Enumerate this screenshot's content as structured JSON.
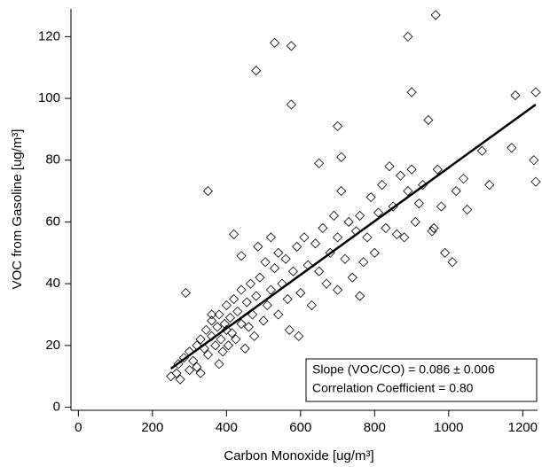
{
  "chart_data": {
    "type": "scatter",
    "xlabel": "Carbon Monoxide [ug/m³]",
    "ylabel": "VOC from Gasoline [ug/m³]",
    "annotations": [
      "Slope (VOC/CO) = 0.086 ± 0.006",
      "Correlation Coefficient = 0.80"
    ],
    "xlim": [
      -20,
      1240
    ],
    "ylim": [
      -1,
      129
    ],
    "xticks": [
      0,
      200,
      400,
      600,
      800,
      1000,
      1200
    ],
    "yticks": [
      0,
      20,
      40,
      60,
      80,
      100,
      120
    ],
    "color": "#000000",
    "x": [
      965,
      890,
      530,
      575,
      480,
      575,
      900,
      1180,
      1235,
      945,
      700,
      710,
      1230,
      1235,
      350,
      290,
      1010,
      990,
      1110,
      1170,
      955,
      960,
      760,
      650,
      250,
      265,
      275,
      270,
      285,
      300,
      300,
      310,
      320,
      320,
      330,
      340,
      345,
      350,
      360,
      360,
      370,
      375,
      380,
      385,
      390,
      395,
      400,
      400,
      405,
      410,
      415,
      420,
      425,
      430,
      440,
      440,
      450,
      455,
      460,
      465,
      470,
      475,
      480,
      485,
      490,
      500,
      505,
      510,
      520,
      520,
      530,
      540,
      540,
      550,
      560,
      565,
      570,
      580,
      590,
      595,
      600,
      610,
      620,
      630,
      640,
      650,
      660,
      670,
      680,
      690,
      700,
      700,
      710,
      720,
      730,
      740,
      750,
      760,
      770,
      780,
      790,
      800,
      810,
      820,
      830,
      840,
      850,
      860,
      870,
      880,
      890,
      900,
      910,
      920,
      930,
      970,
      980,
      1020,
      1040,
      1050,
      1090,
      420,
      440,
      360,
      380,
      330
    ],
    "values": [
      127,
      120,
      118,
      117,
      109,
      98,
      102,
      101,
      102,
      93,
      91,
      81,
      80,
      73,
      70,
      37,
      47,
      50,
      72,
      84,
      57,
      58,
      36,
      79,
      10,
      11,
      9,
      14,
      16,
      18,
      12,
      15,
      20,
      13,
      22,
      19,
      25,
      17,
      23,
      28,
      20,
      26,
      30,
      22,
      18,
      27,
      25,
      33,
      20,
      29,
      24,
      35,
      22,
      31,
      27,
      38,
      19,
      34,
      26,
      40,
      30,
      23,
      36,
      52,
      42,
      28,
      47,
      33,
      55,
      38,
      45,
      30,
      50,
      40,
      48,
      35,
      25,
      44,
      52,
      23,
      37,
      55,
      46,
      33,
      53,
      44,
      58,
      40,
      50,
      62,
      55,
      38,
      70,
      48,
      60,
      42,
      57,
      62,
      47,
      55,
      68,
      50,
      63,
      72,
      58,
      78,
      65,
      56,
      75,
      55,
      70,
      77,
      60,
      66,
      72,
      77,
      65,
      70,
      74,
      64,
      83,
      56,
      49,
      30,
      14,
      11
    ],
    "fit": {
      "x": [
        250,
        1235
      ],
      "y": [
        12.5,
        98
      ]
    }
  }
}
